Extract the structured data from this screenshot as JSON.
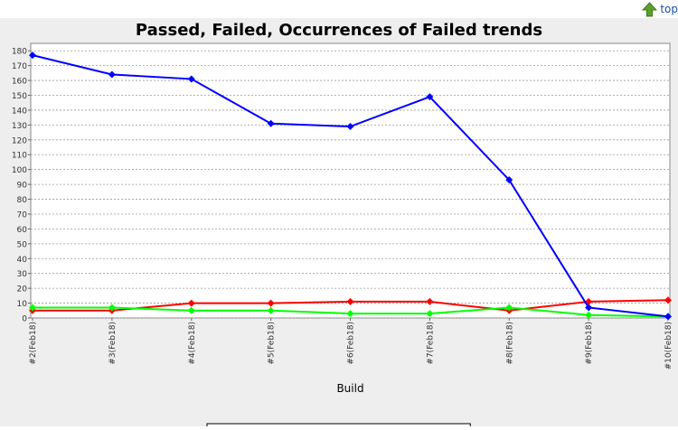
{
  "top_link": {
    "label": "top",
    "icon": "up-arrow-icon",
    "icon_color": "#5aa02c"
  },
  "chart_data": {
    "type": "line",
    "title": "Passed, Failed, Occurrences of Failed trends",
    "xlabel": "Build",
    "ylabel": "",
    "categories": [
      "#2(Feb18)",
      "#3(Feb18)",
      "#4(Feb18)",
      "#5(Feb18)",
      "#6(Feb18)",
      "#7(Feb18)",
      "#8(Feb18)",
      "#9(Feb18)",
      "#10(Feb18)"
    ],
    "ylim": [
      0,
      185
    ],
    "yticks": [
      0,
      10,
      20,
      30,
      40,
      50,
      60,
      70,
      80,
      90,
      100,
      110,
      120,
      130,
      140,
      150,
      160,
      170,
      180
    ],
    "grid": true,
    "legend_position": "bottom",
    "series": [
      {
        "name": "Passed",
        "color": "#ff0000",
        "values": [
          5,
          5,
          10,
          10,
          11,
          11,
          5,
          11,
          12
        ]
      },
      {
        "name": "Failed",
        "color": "#00ff00",
        "values": [
          7,
          7,
          5,
          5,
          3,
          3,
          7,
          2,
          1
        ]
      },
      {
        "name": "Occurrences of Failed",
        "color": "#0000ff",
        "values": [
          177,
          164,
          161,
          131,
          129,
          149,
          93,
          7,
          1
        ]
      }
    ]
  }
}
